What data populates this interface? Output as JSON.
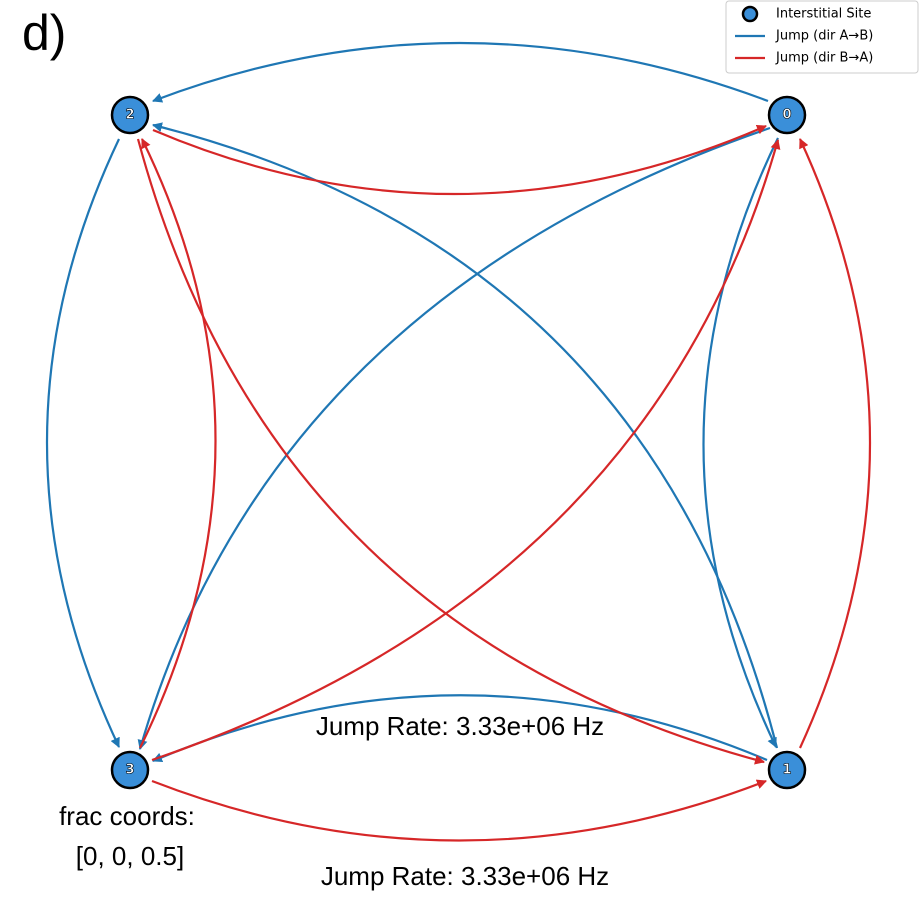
{
  "panel_label": "d)",
  "legend": {
    "items": [
      "Interstitial Site",
      "Jump (dir A→B)",
      "Jump (dir B→A)"
    ]
  },
  "nodes": [
    {
      "label": "0"
    },
    {
      "label": "1"
    },
    {
      "label": "2"
    },
    {
      "label": "3"
    }
  ],
  "annotations": {
    "rate_top": "Jump Rate: 3.33e+06 Hz",
    "rate_bottom": "Jump Rate: 3.33e+06 Hz",
    "coords_title": "frac coords:",
    "coords_value": "[0, 0, 0.5]"
  }
}
